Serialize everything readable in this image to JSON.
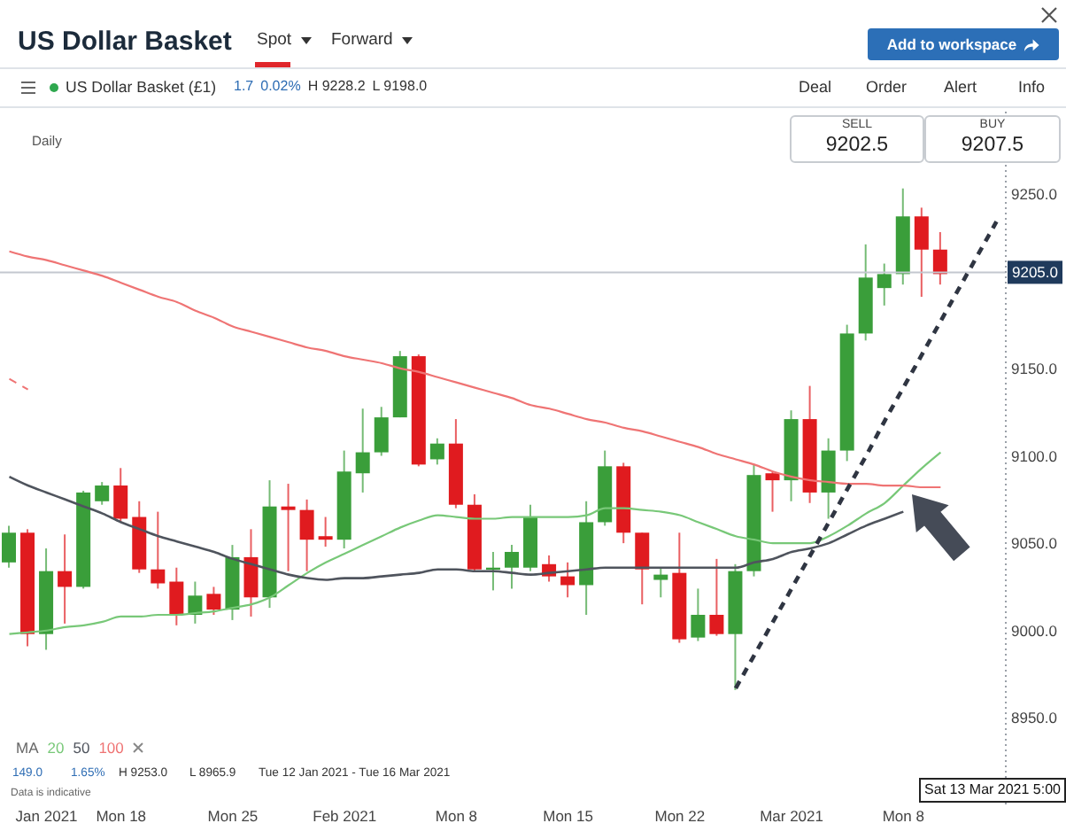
{
  "chart_data": {
    "type": "candlestick",
    "title": "US Dollar Basket",
    "categories": [
      null,
      null,
      "Jan 2021",
      null,
      null,
      null,
      "Mon 18",
      null,
      null,
      null,
      null,
      null,
      "Mon 25",
      null,
      null,
      null,
      null,
      null,
      "Feb 2021",
      null,
      null,
      null,
      null,
      null,
      "Mon 8",
      null,
      null,
      null,
      null,
      null,
      "Mon 15",
      null,
      null,
      null,
      null,
      null,
      "Mon 22",
      null,
      null,
      null,
      null,
      null,
      "Mar 2021",
      null,
      null,
      null,
      null,
      null,
      "Mon 8",
      null,
      null,
      null,
      null,
      null
    ],
    "ohlc": [
      [
        9039,
        9060,
        9036,
        9056
      ],
      [
        9056,
        9058,
        8991,
        8998
      ],
      [
        8998,
        9047,
        8989,
        9034
      ],
      [
        9034,
        9055,
        9004,
        9025
      ],
      [
        9025,
        9080,
        9024,
        9079
      ],
      [
        9074,
        9085,
        9072,
        9083
      ],
      [
        9083,
        9093,
        9062,
        9064
      ],
      [
        9065,
        9074,
        9033,
        9035
      ],
      [
        9035,
        9068,
        9024,
        9027
      ],
      [
        9028,
        9036,
        9003,
        9009
      ],
      [
        9009,
        9028,
        9004,
        9020
      ],
      [
        9021,
        9025,
        9009,
        9012
      ],
      [
        9012,
        9049,
        9006,
        9042
      ],
      [
        9042,
        9058,
        9008,
        9019
      ],
      [
        9019,
        9086,
        9013,
        9071
      ],
      [
        9071,
        9084,
        9034,
        9069
      ],
      [
        9069,
        9075,
        9034,
        9052
      ],
      [
        9054,
        9065,
        9048,
        9052
      ],
      [
        9052,
        9103,
        9047,
        9091
      ],
      [
        9090,
        9127,
        9079,
        9102
      ],
      [
        9102,
        9128,
        9100,
        9122
      ],
      [
        9122,
        9160,
        9122,
        9157
      ],
      [
        9157,
        9158,
        9094,
        9095
      ],
      [
        9098,
        9110,
        9095,
        9107
      ],
      [
        9107,
        9121,
        9070,
        9072
      ],
      [
        9072,
        9078,
        9034,
        9035
      ],
      [
        9035,
        9045,
        9023,
        9036
      ],
      [
        9036,
        9049,
        9024,
        9045
      ],
      [
        9036,
        9072,
        9034,
        9065
      ],
      [
        9038,
        9043,
        9028,
        9031
      ],
      [
        9031,
        9039,
        9019,
        9026
      ],
      [
        9026,
        9074,
        9009,
        9062
      ],
      [
        9062,
        9103,
        9060,
        9094
      ],
      [
        9094,
        9096,
        9050,
        9056
      ],
      [
        9056,
        9056,
        9015,
        9035
      ],
      [
        9029,
        9036,
        9019,
        9032
      ],
      [
        9033,
        9056,
        8993,
        8995
      ],
      [
        8996,
        9024,
        8994,
        9009
      ],
      [
        9009,
        9041,
        8997,
        8998
      ],
      [
        8998,
        9038,
        8966,
        9034
      ],
      [
        9034,
        9095,
        9031,
        9089
      ],
      [
        9090,
        9091,
        9068,
        9086
      ],
      [
        9086,
        9126,
        9074,
        9121
      ],
      [
        9121,
        9140,
        9073,
        9079
      ],
      [
        9079,
        9110,
        9064,
        9103
      ],
      [
        9103,
        9175,
        9097,
        9170
      ],
      [
        9170,
        9221,
        9166,
        9202
      ],
      [
        9196,
        9210,
        9186,
        9204
      ],
      [
        9204,
        9253,
        9198,
        9237
      ],
      [
        9237,
        9242,
        9191,
        9218
      ],
      [
        9218,
        9228,
        9198,
        9204
      ],
      null,
      null,
      null
    ],
    "colors": [
      "#3a9e3a",
      "#e01b1f",
      "#3a9e3a",
      "#e01b1f",
      "#3a9e3a",
      "#3a9e3a",
      "#e01b1f",
      "#e01b1f",
      "#e01b1f",
      "#e01b1f",
      "#3a9e3a",
      "#e01b1f",
      "#3a9e3a",
      "#e01b1f",
      "#3a9e3a",
      "#e01b1f",
      "#e01b1f",
      "#e01b1f",
      "#3a9e3a",
      "#3a9e3a",
      "#3a9e3a",
      "#3a9e3a",
      "#e01b1f",
      "#3a9e3a",
      "#e01b1f",
      "#e01b1f",
      "#3a9e3a",
      "#3a9e3a",
      "#3a9e3a",
      "#e01b1f",
      "#e01b1f",
      "#3a9e3a",
      "#3a9e3a",
      "#e01b1f",
      "#e01b1f",
      "#3a9e3a",
      "#e01b1f",
      "#3a9e3a",
      "#e01b1f",
      "#3a9e3a",
      "#3a9e3a",
      "#e01b1f",
      "#3a9e3a",
      "#e01b1f",
      "#3a9e3a",
      "#3a9e3a",
      "#3a9e3a",
      "#3a9e3a",
      "#3a9e3a",
      "#e01b1f",
      "#e01b1f",
      null,
      null,
      null
    ],
    "series": [
      {
        "name": "20",
        "type": "line",
        "color": "#78c878",
        "values": [
          8998,
          8999,
          9000,
          9002,
          9003,
          9005,
          9008,
          9008,
          9009,
          9009,
          9010,
          9011,
          9013,
          9015,
          9019,
          9026,
          9033,
          9039,
          9044,
          9049,
          9054,
          9059,
          9063,
          9066,
          9065,
          9064,
          9064,
          9065,
          9065,
          9065,
          9065,
          9066,
          9070,
          9070,
          9069,
          9068,
          9066,
          9062,
          9058,
          9054,
          9052,
          9050,
          9050,
          9050,
          9054,
          9060,
          9067,
          9073,
          9083,
          9093,
          9102,
          null,
          null,
          null
        ]
      },
      {
        "name": "50",
        "type": "line",
        "color": "#4f545d",
        "values": [
          9088,
          9083,
          9079,
          9075,
          9071,
          9067,
          9062,
          9058,
          9054,
          9051,
          9048,
          9045,
          9041,
          9038,
          9035,
          9032,
          9030,
          9029,
          9030,
          9030,
          9031,
          9032,
          9033,
          9035,
          9035,
          9034,
          9034,
          9033,
          9032,
          9033,
          9034,
          9035,
          9036,
          9036,
          9036,
          9036,
          9036,
          9036,
          9036,
          9036,
          9039,
          9041,
          9045,
          9047,
          9050,
          9055,
          9060,
          9064,
          9068,
          null,
          null,
          null,
          null,
          null
        ]
      },
      {
        "name": "100",
        "type": "line",
        "color": "#ef7474",
        "values": [
          9217,
          9214,
          9212,
          9209,
          9206,
          9203,
          9199,
          9195,
          9191,
          9188,
          9183,
          9179,
          9174,
          9171,
          9168,
          9165,
          9162,
          9160,
          9157,
          9155,
          9153,
          9150,
          9148,
          9145,
          9142,
          9139,
          9136,
          9133,
          9129,
          9127,
          9124,
          9121,
          9119,
          9116,
          9114,
          9111,
          9108,
          9105,
          9101,
          9098,
          9095,
          9091,
          9088,
          9086,
          9085,
          9084,
          9084,
          9083,
          9083,
          9082,
          9082,
          null,
          null,
          null
        ]
      },
      {
        "type": "line",
        "color": "#ef7474",
        "line_style": "dashed",
        "values": [
          9144,
          9138,
          null,
          null,
          null,
          null,
          null,
          null,
          null,
          null,
          null,
          null,
          null,
          null,
          null,
          null,
          null,
          null,
          null,
          null,
          null,
          null,
          null,
          null,
          null,
          null,
          null,
          null,
          null,
          null,
          null,
          null,
          null,
          null,
          null,
          null,
          null,
          null,
          null,
          null,
          null,
          null,
          null,
          null,
          null,
          null,
          null,
          null,
          null,
          null,
          null,
          null,
          null,
          null
        ]
      },
      {
        "type": "line",
        "color": "#2f3542",
        "line_style": "dashed",
        "values": [
          null,
          null,
          null,
          null,
          null,
          null,
          null,
          null,
          null,
          null,
          null,
          null,
          null,
          null,
          null,
          null,
          null,
          null,
          null,
          null,
          null,
          null,
          null,
          null,
          null,
          null,
          null,
          null,
          null,
          null,
          null,
          null,
          null,
          null,
          null,
          null,
          null,
          null,
          null,
          8967,
          8986,
          9005,
          9024,
          9043,
          9062,
          9081,
          9100,
          9120,
          9139,
          9158,
          9177,
          9196,
          9215,
          9234
        ]
      }
    ],
    "ylim": [
      8900,
      9300
    ],
    "yticks": [
      {
        "value": 8950,
        "label": "8950.0"
      },
      {
        "value": 9000,
        "label": "9000.0"
      },
      {
        "value": 9050,
        "label": "9050.0"
      },
      {
        "value": 9100,
        "label": "9100.0"
      },
      {
        "value": 9150,
        "label": "9150.0"
      },
      {
        "value": 9250,
        "label": "9250.0"
      }
    ],
    "ref_lines": [
      {
        "axis": "y",
        "value": 9205,
        "label": "9205.0",
        "color": "#c3c8cf"
      }
    ],
    "legend": "bottom left",
    "legend_title": "MA",
    "annotations": [
      "Spot",
      "Forward",
      "Add to workspace",
      "US Dollar Basket (£1)",
      "1.7",
      "0.02%",
      "H 9228.2",
      "L 9198.0",
      "Deal",
      "Order",
      "Alert",
      "Info",
      "Daily",
      "SELL",
      "9202.5",
      "BUY",
      "9207.5",
      "149.0",
      "1.65%",
      "H 9253.0",
      "L 8965.9",
      "Tue 12 Jan 2021 - Tue 16 Mar 2021",
      "Data is indicative",
      "Sat 13 Mar 2021 5:00"
    ]
  }
}
